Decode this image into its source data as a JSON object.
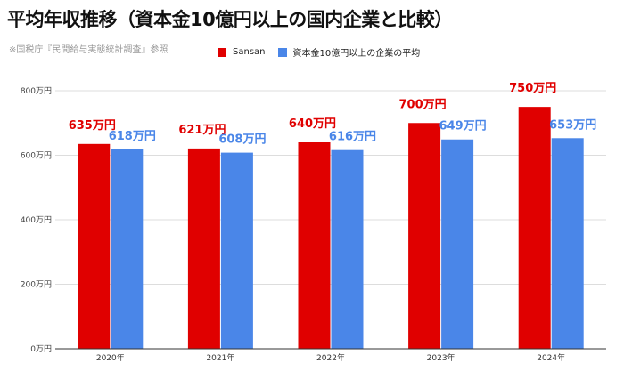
{
  "title": "平均年収推移（資本金10億円以上の国内企業と比較）",
  "source": "※国税庁『民間給与実態統計調査』参照",
  "colors": {
    "sansan": "#e00000",
    "avg": "#4a86e8",
    "grid": "#dddddd",
    "axis": "#333333"
  },
  "chart_data": {
    "type": "bar",
    "categories": [
      "2020年",
      "2021年",
      "2022年",
      "2023年",
      "2024年"
    ],
    "series": [
      {
        "name": "Sansan",
        "values": [
          635,
          621,
          640,
          700,
          750
        ],
        "labels": [
          "635万円",
          "621万円",
          "640万円",
          "700万円",
          "750万円"
        ],
        "color": "#e00000"
      },
      {
        "name": "資本金10億円以上の企業の平均",
        "values": [
          618,
          608,
          616,
          649,
          653
        ],
        "labels": [
          "618万円",
          "608万円",
          "616万円",
          "649万円",
          "653万円"
        ],
        "color": "#4a86e8"
      }
    ],
    "ylim": [
      0,
      800
    ],
    "yticks": [
      0,
      200,
      400,
      600,
      800
    ],
    "ytick_labels": [
      "0万円",
      "200万円",
      "400万円",
      "600万円",
      "800万円"
    ],
    "grid": true,
    "legend_position": "top"
  }
}
